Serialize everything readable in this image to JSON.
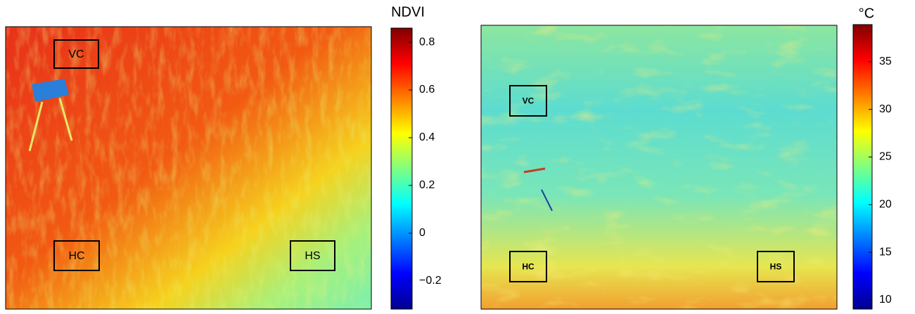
{
  "chart_data": [
    {
      "type": "heatmap",
      "colorbar": {
        "label": "NDVI",
        "lim": [
          -0.318,
          0.859
        ],
        "ticks": [
          0.8,
          0.6,
          0.4,
          0.2,
          0,
          {
            "value": -0.2,
            "label": "−0.2"
          }
        ]
      },
      "boxes": [
        "VC",
        "HC",
        "HS"
      ]
    },
    {
      "type": "heatmap",
      "colorbar": {
        "label": "°C",
        "lim": [
          9.04,
          38.9
        ],
        "ticks": [
          35,
          30,
          25,
          20,
          15,
          10
        ]
      },
      "boxes": [
        "VC",
        "HC",
        "HS"
      ]
    }
  ]
}
